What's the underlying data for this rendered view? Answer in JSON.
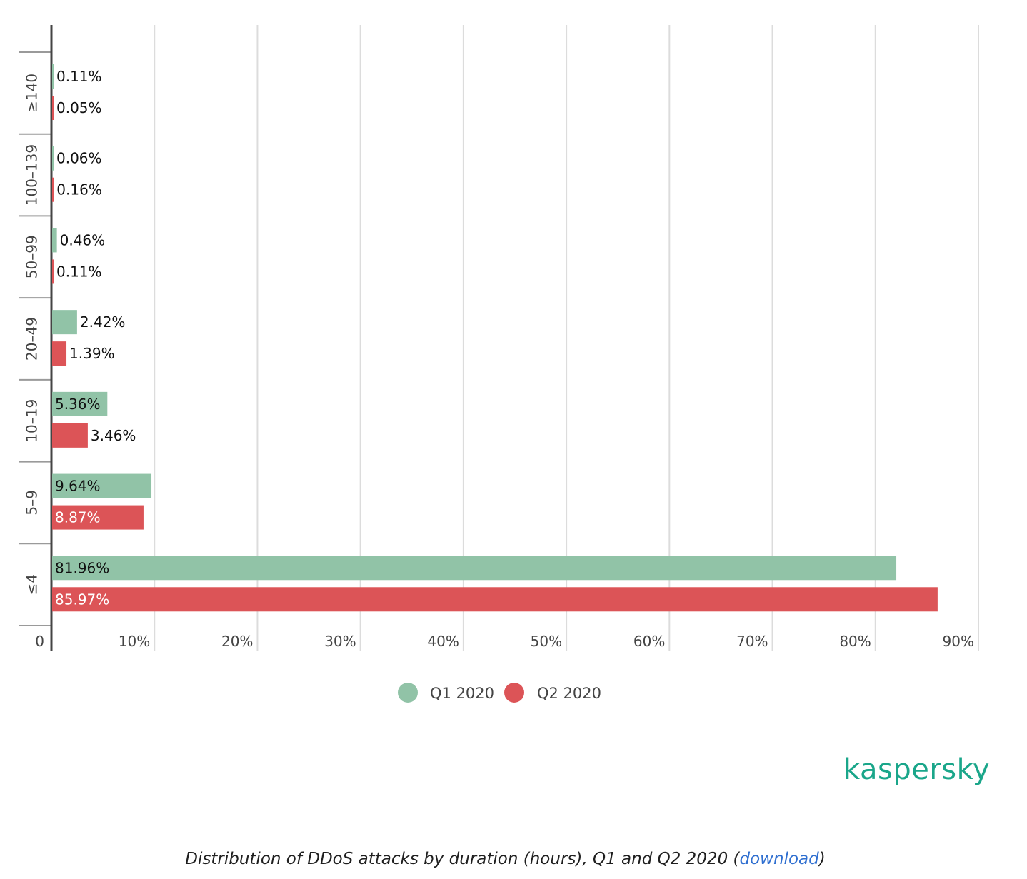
{
  "chart_data": {
    "type": "bar",
    "orientation": "horizontal",
    "categories": [
      "≥140",
      "100–139",
      "50–99",
      "20–49",
      "10–19",
      "5–9",
      "≤4"
    ],
    "series": [
      {
        "name": "Q1 2020",
        "color": "#91c3a7",
        "values": [
          0.11,
          0.06,
          0.46,
          2.42,
          5.36,
          9.64,
          81.96
        ],
        "labels": [
          "0.11%",
          "0.06%",
          "0.46%",
          "2.42%",
          "5.36%",
          "9.64%",
          "81.96%"
        ]
      },
      {
        "name": "Q2 2020",
        "color": "#dc5457",
        "values": [
          0.05,
          0.16,
          0.11,
          1.39,
          3.46,
          8.87,
          85.97
        ],
        "labels": [
          "0.05%",
          "0.16%",
          "0.11%",
          "1.39%",
          "3.46%",
          "8.87%",
          "85.97%"
        ]
      }
    ],
    "xlim": [
      0,
      90
    ],
    "xticks": [
      "0",
      "10%",
      "20%",
      "30%",
      "40%",
      "50%",
      "60%",
      "70%",
      "80%",
      "90%"
    ],
    "grid": true,
    "legend": "bottom-center"
  },
  "logo": "kaspersky",
  "caption": {
    "text": "Distribution of DDoS attacks by duration (hours), Q1 and Q2 2020 (",
    "link": "download",
    "end": ")"
  }
}
